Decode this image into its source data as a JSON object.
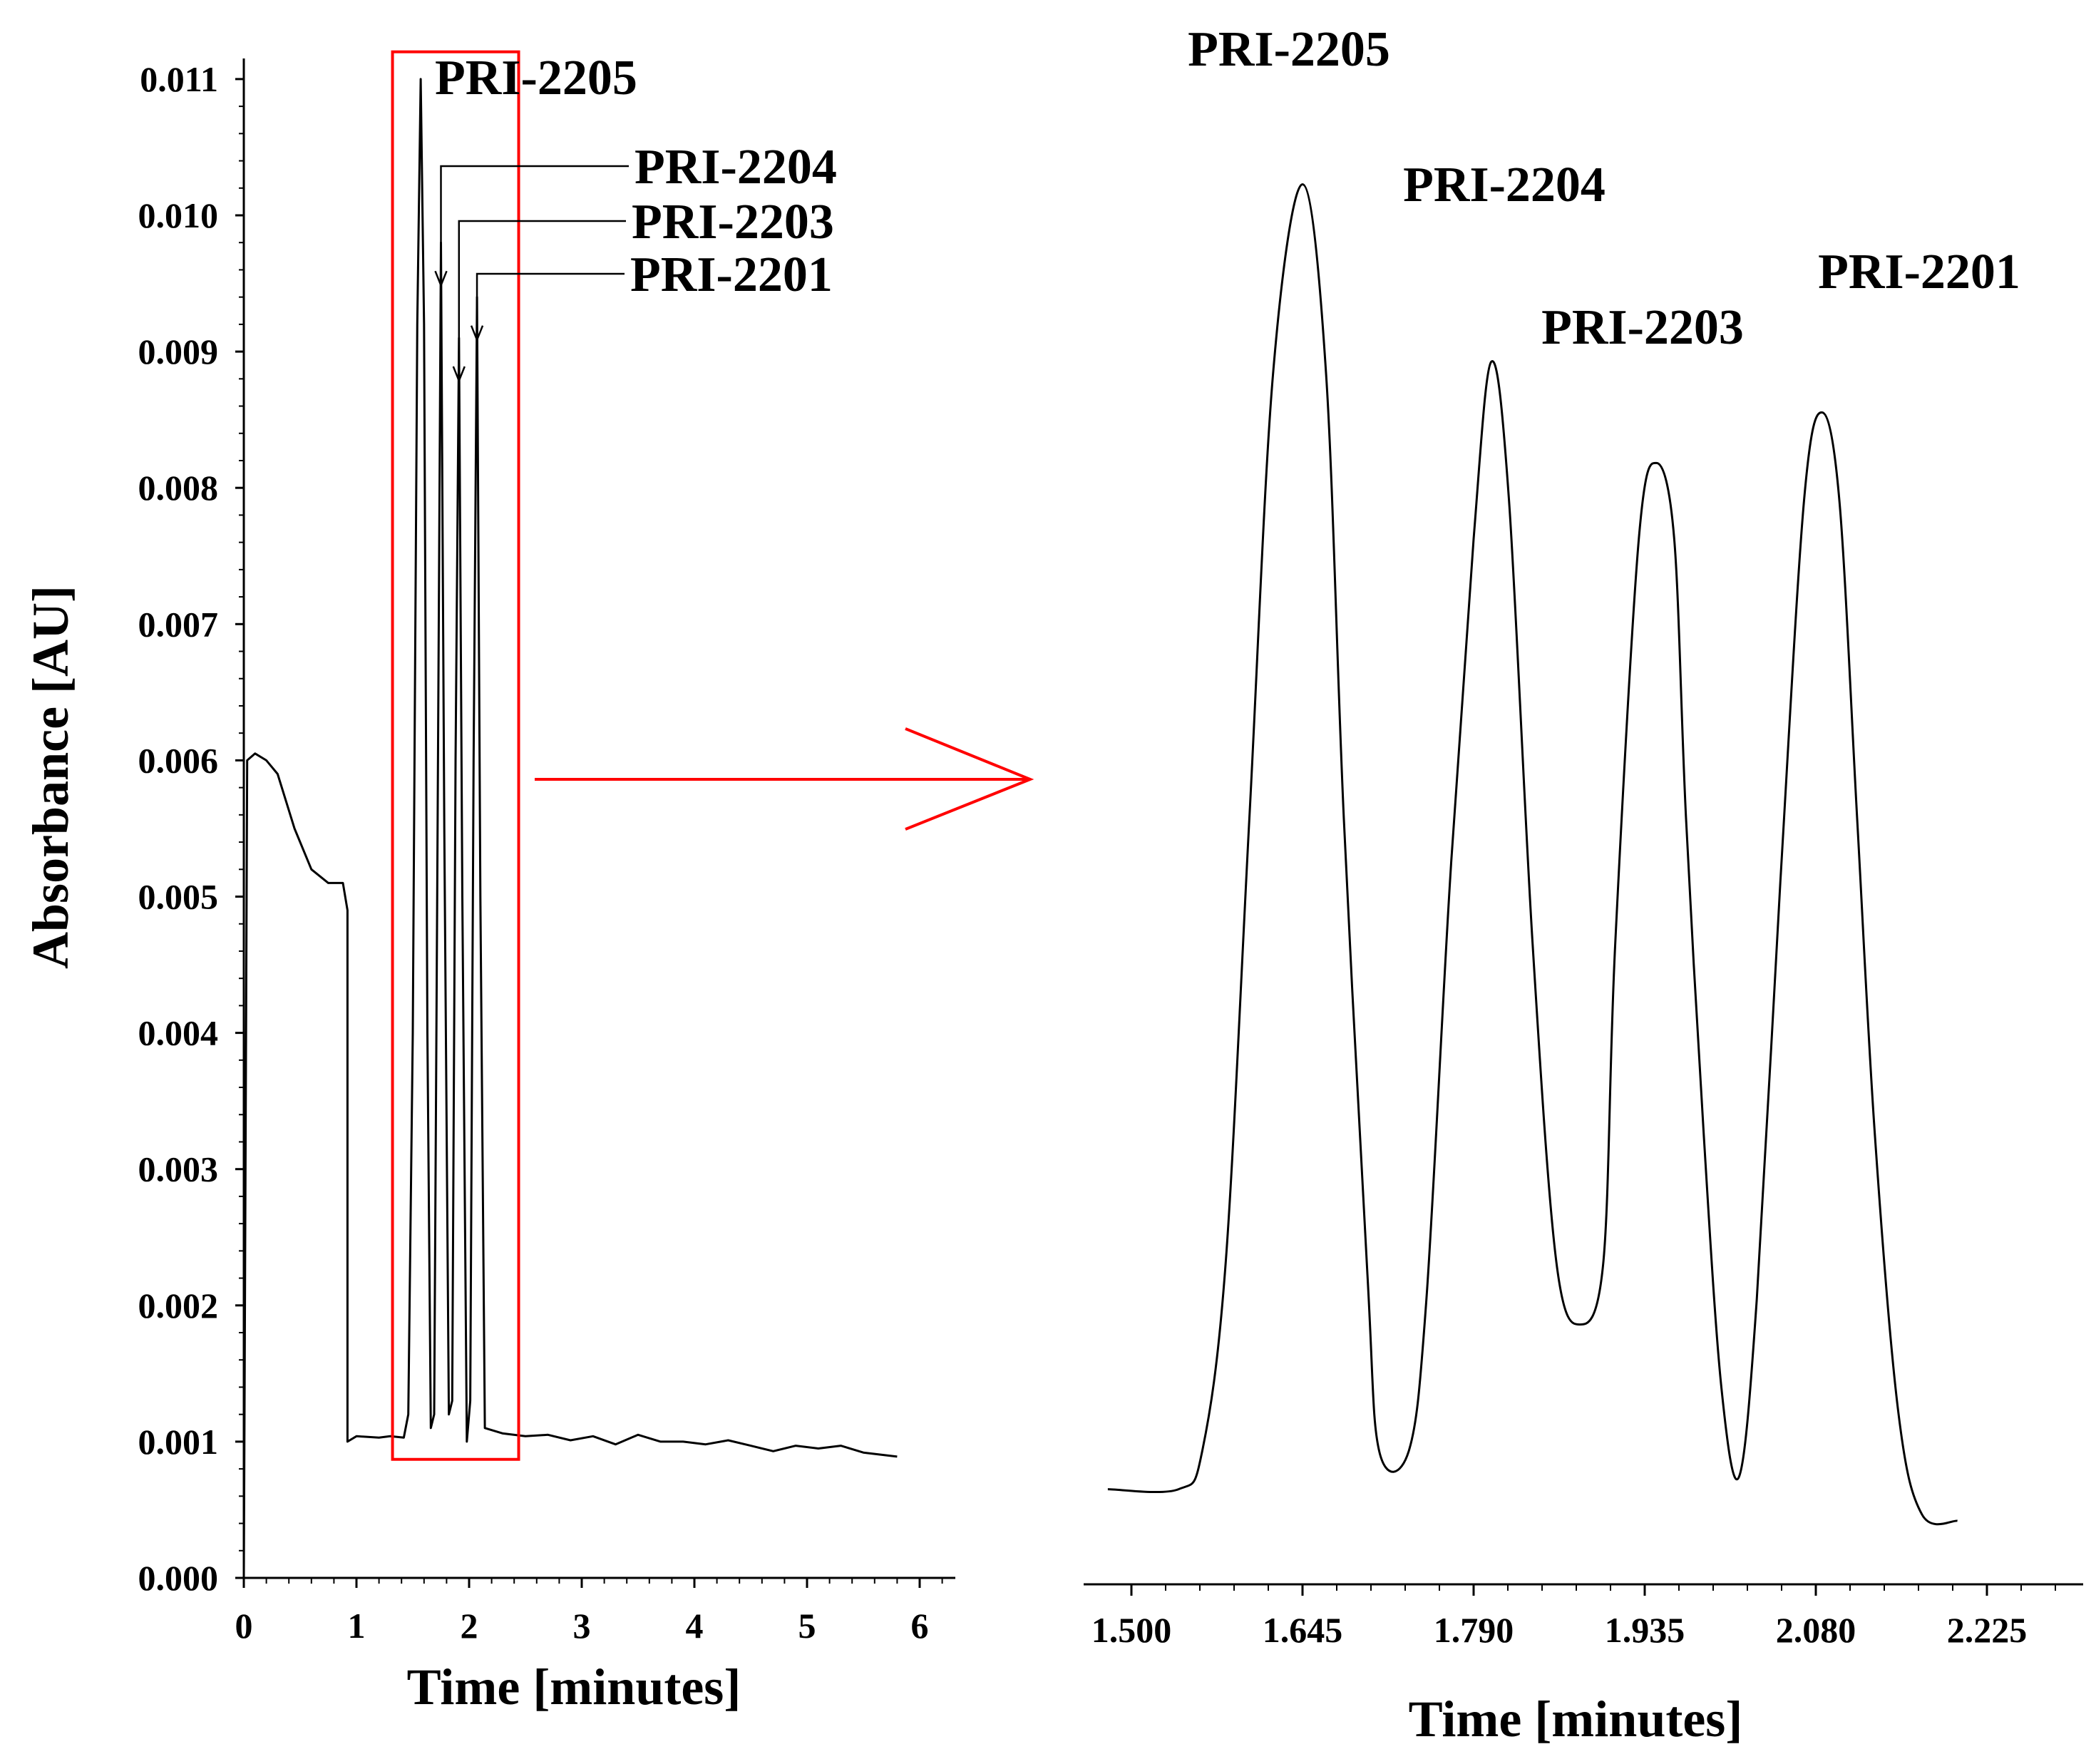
{
  "colors": {
    "highlight": "#ff0000",
    "ink": "#000000"
  },
  "chart_data": [
    {
      "id": "full-chromatogram",
      "type": "line",
      "ylabel": "Absorbance [AU]",
      "xlabel": "Time [minutes]",
      "xlim": [
        0,
        6.3
      ],
      "ylim": [
        0,
        0.0112
      ],
      "xticks": [
        0,
        1,
        2,
        3,
        4,
        5,
        6
      ],
      "xtick_labels": [
        "0",
        "1",
        "2",
        "3",
        "4",
        "5",
        "6"
      ],
      "yticks": [
        0,
        0.001,
        0.002,
        0.003,
        0.004,
        0.005,
        0.006,
        0.007,
        0.008,
        0.009,
        0.01,
        0.011
      ],
      "ytick_labels": [
        "0.000",
        "0.001",
        "0.002",
        "0.003",
        "0.004",
        "0.005",
        "0.006",
        "0.007",
        "0.008",
        "0.009",
        "0.010",
        "0.011"
      ],
      "series": [
        {
          "name": "trace",
          "points": [
            [
              0.0,
              0.0
            ],
            [
              0.03,
              0.006
            ],
            [
              0.1,
              0.00605
            ],
            [
              0.2,
              0.006
            ],
            [
              0.3,
              0.0059
            ],
            [
              0.45,
              0.0055
            ],
            [
              0.6,
              0.0052
            ],
            [
              0.75,
              0.0051
            ],
            [
              0.88,
              0.0051
            ],
            [
              0.92,
              0.0049
            ],
            [
              0.92,
              0.001
            ],
            [
              1.0,
              0.00104
            ],
            [
              1.2,
              0.00103
            ],
            [
              1.3,
              0.00104
            ],
            [
              1.42,
              0.00103
            ],
            [
              1.46,
              0.0012
            ],
            [
              1.5,
              0.004
            ],
            [
              1.54,
              0.0092
            ],
            [
              1.57,
              0.011
            ],
            [
              1.6,
              0.0092
            ],
            [
              1.63,
              0.004
            ],
            [
              1.66,
              0.0011
            ],
            [
              1.69,
              0.0012
            ],
            [
              1.72,
              0.0055
            ],
            [
              1.75,
              0.0098
            ],
            [
              1.78,
              0.0055
            ],
            [
              1.82,
              0.0012
            ],
            [
              1.85,
              0.0013
            ],
            [
              1.88,
              0.006
            ],
            [
              1.91,
              0.0091
            ],
            [
              1.94,
              0.005
            ],
            [
              1.98,
              0.001
            ],
            [
              2.01,
              0.0013
            ],
            [
              2.04,
              0.006
            ],
            [
              2.07,
              0.0094
            ],
            [
              2.1,
              0.005
            ],
            [
              2.14,
              0.0011
            ],
            [
              2.3,
              0.00106
            ],
            [
              2.5,
              0.00104
            ],
            [
              2.7,
              0.00105
            ],
            [
              2.9,
              0.00101
            ],
            [
              3.1,
              0.00104
            ],
            [
              3.3,
              0.00098
            ],
            [
              3.5,
              0.00105
            ],
            [
              3.7,
              0.001
            ],
            [
              3.9,
              0.001
            ],
            [
              4.1,
              0.00098
            ],
            [
              4.3,
              0.00101
            ],
            [
              4.5,
              0.00097
            ],
            [
              4.7,
              0.00093
            ],
            [
              4.9,
              0.00097
            ],
            [
              5.1,
              0.00095
            ],
            [
              5.3,
              0.00097
            ],
            [
              5.5,
              0.00092
            ],
            [
              5.7,
              0.0009
            ],
            [
              5.8,
              0.00089
            ]
          ]
        }
      ],
      "annotations": [
        {
          "text": "PRI-2205",
          "x": 1.57,
          "y": 0.011
        },
        {
          "text": "PRI-2204",
          "x": 1.75,
          "y": 0.0098
        },
        {
          "text": "PRI-2203",
          "x": 1.91,
          "y": 0.0091
        },
        {
          "text": "PRI-2201",
          "x": 2.07,
          "y": 0.0094
        }
      ],
      "highlight_region": {
        "x": [
          1.32,
          2.44
        ],
        "y": [
          0.00087,
          0.0112
        ]
      }
    },
    {
      "id": "zoomed-chromatogram",
      "type": "line",
      "xlabel": "Time [minutes]",
      "ylabel": "",
      "xlim": [
        1.48,
        2.29
      ],
      "ylim": [
        0,
        0.0112
      ],
      "xticks": [
        1.5,
        1.645,
        1.79,
        1.935,
        2.08,
        2.225
      ],
      "xtick_labels": [
        "1.500",
        "1.645",
        "1.790",
        "1.935",
        "2.080",
        "2.225"
      ],
      "series": [
        {
          "name": "trace",
          "points": [
            [
              1.48,
              0.0007
            ],
            [
              1.54,
              0.0007
            ],
            [
              1.56,
              0.001
            ],
            [
              1.58,
              0.0025
            ],
            [
              1.6,
              0.006
            ],
            [
              1.62,
              0.0095
            ],
            [
              1.645,
              0.011
            ],
            [
              1.665,
              0.0095
            ],
            [
              1.68,
              0.006
            ],
            [
              1.7,
              0.0024
            ],
            [
              1.71,
              0.001
            ],
            [
              1.735,
              0.001
            ],
            [
              1.75,
              0.0022
            ],
            [
              1.77,
              0.0055
            ],
            [
              1.79,
              0.0082
            ],
            [
              1.805,
              0.0096
            ],
            [
              1.82,
              0.0085
            ],
            [
              1.84,
              0.005
            ],
            [
              1.86,
              0.0025
            ],
            [
              1.88,
              0.002
            ],
            [
              1.9,
              0.0025
            ],
            [
              1.91,
              0.005
            ],
            [
              1.93,
              0.0082
            ],
            [
              1.945,
              0.0088
            ],
            [
              1.96,
              0.0082
            ],
            [
              1.97,
              0.006
            ],
            [
              1.985,
              0.0035
            ],
            [
              2.0,
              0.0015
            ],
            [
              2.015,
              0.0008
            ],
            [
              2.03,
              0.0022
            ],
            [
              2.05,
              0.0055
            ],
            [
              2.07,
              0.0085
            ],
            [
              2.085,
              0.0092
            ],
            [
              2.1,
              0.0085
            ],
            [
              2.115,
              0.006
            ],
            [
              2.13,
              0.0035
            ],
            [
              2.15,
              0.0013
            ],
            [
              2.17,
              0.0005
            ],
            [
              2.2,
              0.00045
            ]
          ]
        }
      ],
      "annotations": [
        {
          "text": "PRI-2205",
          "x": 1.645,
          "y": 0.011
        },
        {
          "text": "PRI-2204",
          "x": 1.805,
          "y": 0.0096
        },
        {
          "text": "PRI-2203",
          "x": 1.945,
          "y": 0.0088
        },
        {
          "text": "PRI-2201",
          "x": 2.085,
          "y": 0.0092
        }
      ]
    }
  ]
}
